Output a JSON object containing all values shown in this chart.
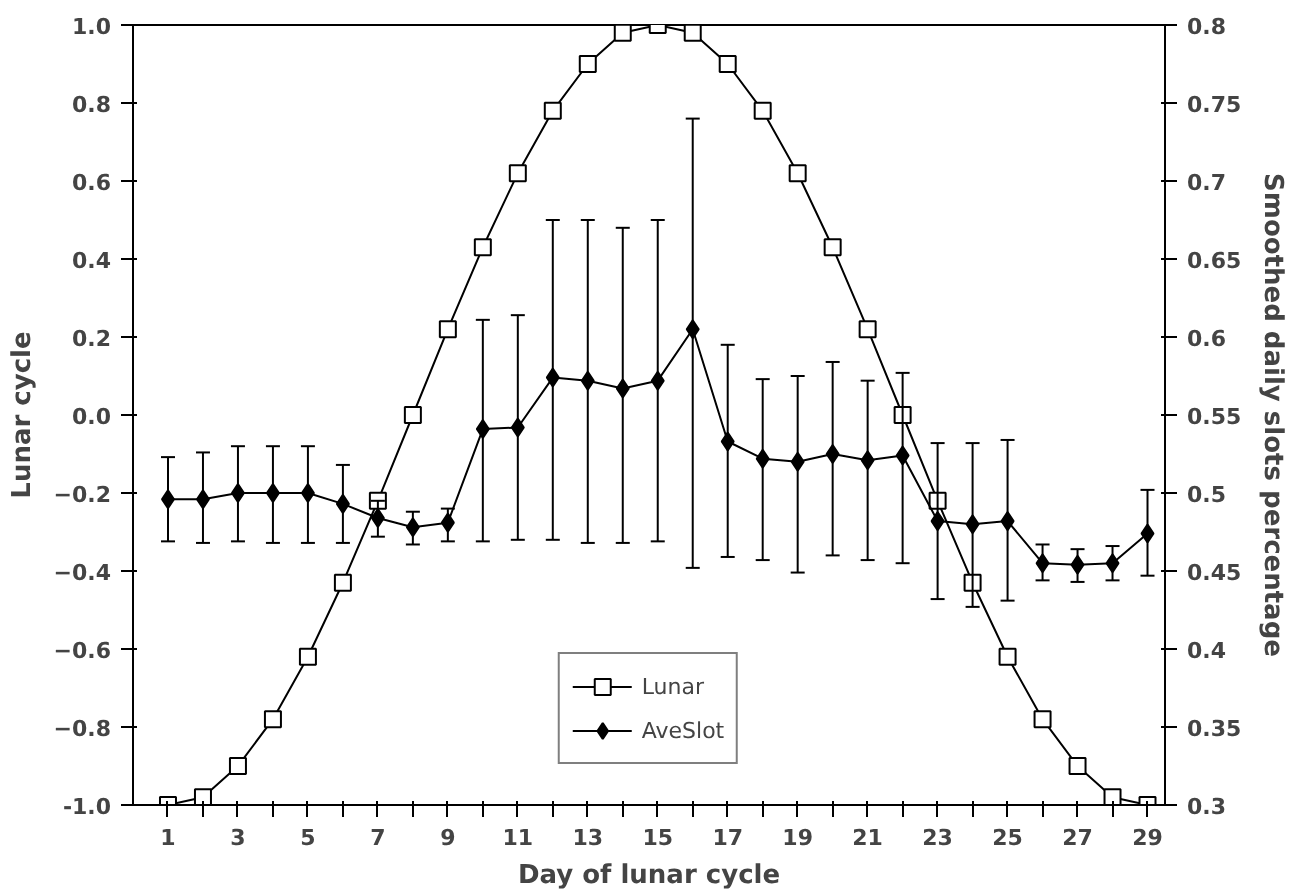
{
  "chart_data": {
    "type": "line",
    "xlabel": "Day of lunar cycle",
    "ylabel": "Lunar cycle",
    "y2label": "Smoothed daily slots percentage",
    "x": [
      1,
      2,
      3,
      4,
      5,
      6,
      7,
      8,
      9,
      10,
      11,
      12,
      13,
      14,
      15,
      16,
      17,
      18,
      19,
      20,
      21,
      22,
      23,
      24,
      25,
      26,
      27,
      28,
      29
    ],
    "xlim": [
      0,
      29.5
    ],
    "xticks": [
      1,
      {
        "value": 2,
        "label": null
      },
      3,
      {
        "value": 4,
        "label": null
      },
      5,
      {
        "value": 6,
        "label": null
      },
      7,
      {
        "value": 8,
        "label": null
      },
      9,
      {
        "value": 10,
        "label": null
      },
      11,
      {
        "value": 12,
        "label": null
      },
      13,
      {
        "value": 14,
        "label": null
      },
      15,
      {
        "value": 16,
        "label": null
      },
      17,
      {
        "value": 18,
        "label": null
      },
      19,
      {
        "value": 20,
        "label": null
      },
      21,
      {
        "value": 22,
        "label": null
      },
      23,
      {
        "value": 24,
        "label": null
      },
      25,
      {
        "value": 26,
        "label": null
      },
      27,
      {
        "value": 28,
        "label": null
      },
      29
    ],
    "ylim": [
      -1.0,
      1.0
    ],
    "yticks": [
      {
        "value": -1.0,
        "label": "-1.0"
      },
      -0.8,
      -0.6,
      -0.4,
      -0.2,
      {
        "value": 0,
        "label": "0.0"
      },
      0.2,
      0.4,
      0.6,
      0.8,
      {
        "value": 1.0,
        "label": "1.0"
      }
    ],
    "y2lim": [
      0.3,
      0.8
    ],
    "y2ticks": [
      0.3,
      0.35,
      0.4,
      0.45,
      0.5,
      0.55,
      0.6,
      0.65,
      0.7,
      0.75,
      0.8
    ],
    "series": [
      {
        "name": "Lunar",
        "color": "#000000",
        "marker": "square",
        "values": [
          -1.0,
          -0.98,
          -0.9,
          -0.78,
          -0.62,
          -0.43,
          -0.22,
          0.0,
          0.22,
          0.43,
          0.62,
          0.78,
          0.9,
          0.98,
          1.0,
          0.98,
          0.9,
          0.78,
          0.62,
          0.43,
          0.22,
          0.0,
          -0.22,
          -0.43,
          -0.62,
          -0.78,
          -0.9,
          -0.98,
          -1.0
        ]
      },
      {
        "name": "AveSlot",
        "color": "#000000",
        "marker": "diamond",
        "axis": "y2",
        "values": [
          0.496,
          0.496,
          0.5,
          0.5,
          0.5,
          0.493,
          0.484,
          0.478,
          0.481,
          0.541,
          0.542,
          0.574,
          0.572,
          0.567,
          0.572,
          0.605,
          0.533,
          0.522,
          0.52,
          0.525,
          0.521,
          0.524,
          0.482,
          0.48,
          0.482,
          0.455,
          0.454,
          0.455,
          0.474
        ],
        "errors": [
          [
            0.469,
            0.523
          ],
          [
            0.468,
            0.526
          ],
          [
            0.469,
            0.53
          ],
          [
            0.468,
            0.53
          ],
          [
            0.468,
            0.53
          ],
          [
            0.468,
            0.518
          ],
          [
            0.472,
            0.495
          ],
          [
            0.467,
            0.488
          ],
          [
            0.469,
            0.49
          ],
          [
            0.469,
            0.611
          ],
          [
            0.47,
            0.614
          ],
          [
            0.47,
            0.675
          ],
          [
            0.468,
            0.675
          ],
          [
            0.468,
            0.67
          ],
          [
            0.469,
            0.675
          ],
          [
            0.452,
            0.74
          ],
          [
            0.459,
            0.595
          ],
          [
            0.457,
            0.573
          ],
          [
            0.449,
            0.575
          ],
          [
            0.46,
            0.584
          ],
          [
            0.457,
            0.572
          ],
          [
            0.455,
            0.577
          ],
          [
            0.432,
            0.532
          ],
          [
            0.427,
            0.532
          ],
          [
            0.431,
            0.534
          ],
          [
            0.444,
            0.467
          ],
          [
            0.443,
            0.464
          ],
          [
            0.444,
            0.466
          ],
          [
            0.447,
            0.502
          ]
        ]
      }
    ],
    "line_style": "solid",
    "grid": false,
    "legend": "bottom"
  }
}
